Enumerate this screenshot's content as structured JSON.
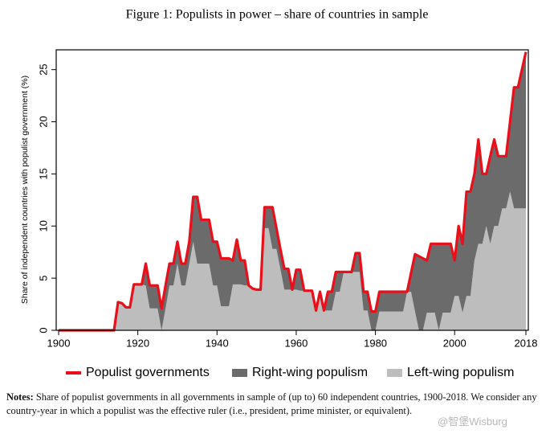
{
  "chart_data": {
    "type": "area",
    "title": "Figure 1:   Populists in power – share of countries in sample",
    "ylabel": "Share of independent countries with populist government (%)",
    "x": [
      1900,
      1901,
      1902,
      1903,
      1904,
      1905,
      1906,
      1907,
      1908,
      1909,
      1910,
      1911,
      1912,
      1913,
      1914,
      1915,
      1916,
      1917,
      1918,
      1919,
      1920,
      1921,
      1922,
      1923,
      1924,
      1925,
      1926,
      1927,
      1928,
      1929,
      1930,
      1931,
      1932,
      1933,
      1934,
      1935,
      1936,
      1937,
      1938,
      1939,
      1940,
      1941,
      1942,
      1943,
      1944,
      1945,
      1946,
      1947,
      1948,
      1949,
      1950,
      1951,
      1952,
      1953,
      1954,
      1955,
      1956,
      1957,
      1958,
      1959,
      1960,
      1961,
      1962,
      1963,
      1964,
      1965,
      1966,
      1967,
      1968,
      1969,
      1970,
      1971,
      1972,
      1973,
      1974,
      1975,
      1976,
      1977,
      1978,
      1979,
      1980,
      1981,
      1982,
      1983,
      1984,
      1985,
      1986,
      1987,
      1988,
      1989,
      1990,
      1991,
      1992,
      1993,
      1994,
      1995,
      1996,
      1997,
      1998,
      1999,
      2000,
      2001,
      2002,
      2003,
      2004,
      2005,
      2006,
      2007,
      2008,
      2009,
      2010,
      2011,
      2012,
      2013,
      2014,
      2015,
      2016,
      2017,
      2018
    ],
    "series": [
      {
        "name": "Populist governments",
        "kind": "line",
        "color": "#e8101a",
        "values": [
          0,
          0,
          0,
          0,
          0,
          0,
          0,
          0,
          0,
          0,
          0,
          0,
          0,
          0,
          0,
          2.7,
          2.6,
          2.2,
          2.2,
          4.4,
          4.4,
          4.4,
          6.4,
          4.3,
          4.3,
          4.3,
          2.1,
          4.3,
          6.4,
          6.4,
          8.5,
          6.4,
          6.4,
          8.5,
          12.8,
          12.8,
          10.6,
          10.6,
          10.6,
          8.5,
          8.5,
          6.9,
          6.9,
          6.9,
          6.7,
          8.7,
          6.7,
          6.7,
          4.3,
          4.0,
          3.9,
          3.9,
          11.8,
          11.8,
          11.8,
          9.8,
          7.8,
          5.9,
          5.9,
          3.9,
          5.8,
          5.8,
          3.8,
          3.8,
          3.8,
          1.9,
          3.7,
          1.9,
          3.7,
          3.7,
          5.6,
          5.6,
          5.6,
          5.6,
          5.6,
          7.4,
          7.4,
          3.7,
          3.7,
          1.8,
          1.8,
          3.7,
          3.7,
          3.7,
          3.7,
          3.7,
          3.7,
          3.7,
          3.7,
          5.5,
          7.3,
          7.1,
          6.9,
          6.7,
          8.3,
          8.3,
          8.3,
          8.3,
          8.3,
          8.3,
          6.7,
          10.0,
          8.3,
          13.3,
          13.3,
          15.0,
          18.3,
          15.0,
          15.0,
          16.7,
          18.3,
          16.7,
          16.7,
          16.7,
          20.0,
          23.3,
          23.3,
          25.0,
          26.7
        ]
      },
      {
        "name": "Right-wing populism",
        "kind": "area",
        "color": "#6b6b6b",
        "values": [
          0,
          0,
          0,
          0,
          0,
          0,
          0,
          0,
          0,
          0,
          0,
          0,
          0,
          0,
          0,
          0,
          0,
          0,
          0,
          0,
          0,
          0,
          2.1,
          2.2,
          2.2,
          2.2,
          2.1,
          2.2,
          2.1,
          2.1,
          2.1,
          2.1,
          2.1,
          2.1,
          4.3,
          6.4,
          4.2,
          4.2,
          4.2,
          4.2,
          4.2,
          4.6,
          4.6,
          4.6,
          2.3,
          4.3,
          2.3,
          2.4,
          0,
          0,
          0,
          0,
          2.0,
          2.0,
          4.0,
          2.0,
          1.9,
          2.0,
          2.0,
          0,
          1.9,
          2.0,
          0,
          0,
          0,
          0,
          0,
          0,
          1.8,
          1.8,
          1.9,
          1.9,
          0,
          0,
          0,
          1.8,
          1.8,
          1.8,
          1.8,
          1.8,
          1.8,
          1.9,
          1.9,
          1.9,
          1.9,
          1.9,
          1.9,
          1.9,
          0,
          1.8,
          5.5,
          7.1,
          6.9,
          5.0,
          6.6,
          6.6,
          8.3,
          6.6,
          6.6,
          6.6,
          3.4,
          6.7,
          6.6,
          10.0,
          10.0,
          8.3,
          10.0,
          6.7,
          5.0,
          8.4,
          8.3,
          6.7,
          5.0,
          5.0,
          6.7,
          11.6,
          11.6,
          13.3,
          15.0
        ]
      },
      {
        "name": "Left-wing populism",
        "kind": "area",
        "color": "#bdbdbd",
        "values": [
          0,
          0,
          0,
          0,
          0,
          0,
          0,
          0,
          0,
          0,
          0,
          0,
          0,
          0,
          0,
          2.7,
          2.6,
          2.2,
          2.2,
          4.4,
          4.4,
          4.4,
          4.3,
          2.1,
          2.1,
          2.1,
          0,
          2.1,
          4.3,
          4.3,
          6.4,
          4.3,
          4.3,
          6.4,
          8.5,
          6.4,
          6.4,
          6.4,
          6.4,
          4.3,
          4.3,
          2.3,
          2.3,
          2.3,
          4.4,
          4.4,
          4.4,
          4.3,
          4.3,
          4.0,
          3.9,
          3.9,
          9.8,
          9.8,
          7.8,
          7.8,
          5.9,
          3.9,
          3.9,
          3.9,
          3.9,
          3.8,
          3.8,
          3.8,
          3.8,
          1.9,
          3.7,
          1.9,
          1.9,
          1.9,
          3.7,
          3.7,
          5.6,
          5.6,
          5.6,
          5.6,
          5.6,
          1.9,
          1.9,
          0,
          0,
          1.8,
          1.8,
          1.8,
          1.8,
          1.8,
          1.8,
          1.8,
          3.7,
          3.7,
          1.8,
          0,
          0,
          1.7,
          1.7,
          1.7,
          0,
          1.7,
          1.7,
          1.7,
          3.3,
          3.3,
          1.7,
          3.3,
          3.3,
          6.7,
          8.3,
          8.3,
          10.0,
          8.3,
          10.0,
          10.0,
          11.7,
          11.7,
          13.3,
          11.7,
          11.7,
          11.7,
          11.7
        ]
      }
    ],
    "xlim": [
      1900,
      2018
    ],
    "xticks": [
      1900,
      1920,
      1940,
      1960,
      1980,
      2000,
      2018
    ],
    "ylim": [
      0,
      26.9
    ],
    "yticks": [
      0,
      5,
      10,
      15,
      20,
      25
    ],
    "grid": false,
    "legend": "bottom",
    "notes_label": "Notes:",
    "notes": "Share of populist governments in all governments in sample of (up to) 60 independent countries, 1900-2018. We consider any country-year in which a populist was the effective ruler (i.e., president, prime minister, or equivalent).",
    "watermark": "@智堡Wisburg"
  }
}
